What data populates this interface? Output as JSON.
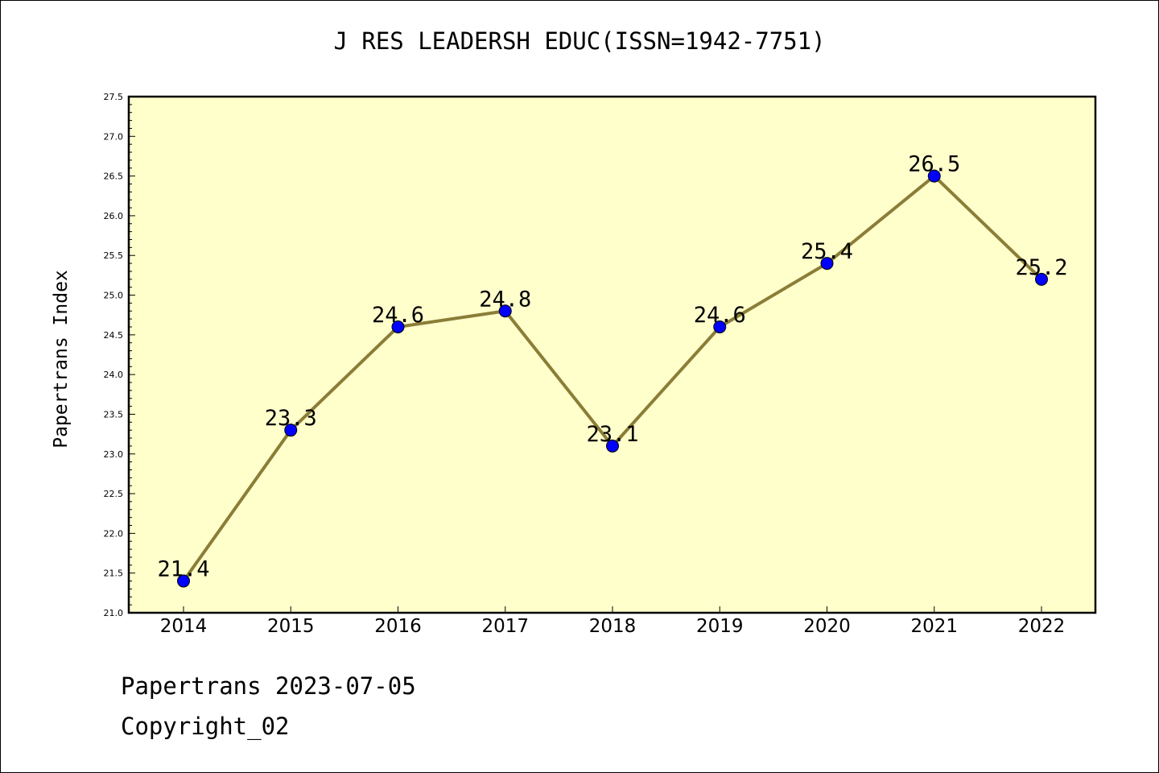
{
  "title": "J RES LEADERSH EDUC(ISSN=1942-7751)",
  "ylabel": "Papertrans Index",
  "footer": {
    "line1": "Papertrans 2023-07-05",
    "line2": "Copyright_02"
  },
  "colors": {
    "plot_bg": "#ffffcc",
    "line": "#8b7d37",
    "marker": "#0000ff"
  },
  "chart_data": {
    "type": "line",
    "title": "J RES LEADERSH EDUC(ISSN=1942-7751)",
    "xlabel": "",
    "ylabel": "Papertrans Index",
    "categories": [
      "2014",
      "2015",
      "2016",
      "2017",
      "2018",
      "2019",
      "2020",
      "2021",
      "2022"
    ],
    "values": [
      21.4,
      23.3,
      24.6,
      24.8,
      23.1,
      24.6,
      25.4,
      26.5,
      25.2
    ],
    "data_labels": [
      "21.4",
      "23.3",
      "24.6",
      "24.8",
      "23.1",
      "24.6",
      "25.4",
      "26.5",
      "25.2"
    ],
    "ylim": [
      21.0,
      27.5
    ],
    "yticks": [
      "21.0",
      "21.5",
      "22.0",
      "22.5",
      "23.0",
      "23.5",
      "24.0",
      "24.5",
      "25.0",
      "25.5",
      "26.0",
      "26.5",
      "27.0",
      "27.5"
    ],
    "grid": false,
    "legend": "none"
  }
}
